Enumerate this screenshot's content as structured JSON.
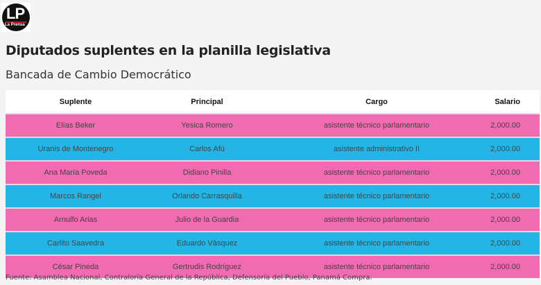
{
  "logo": {
    "text": "LP",
    "name": "La Prensa"
  },
  "title": "Diputados suplentes en la planilla legislativa",
  "subtitle": "Bancada de Cambio Democrático",
  "table": {
    "headers": [
      "Suplente",
      "Principal",
      "Cargo",
      "Salario"
    ],
    "rows": [
      [
        "Elías Beker",
        "Yesica Romero",
        "asistente técnico parlamentario",
        "2,000.00"
      ],
      [
        "Uranis de Montenegro",
        "Carlos Afú",
        "asistente administrativo II",
        "2,000.00"
      ],
      [
        "Ana María Poveda",
        "Didiano Pinilla",
        "asistente técnico parlamentario",
        "2,000.00"
      ],
      [
        "Marcos Rangel",
        "Orlando Carrasquilla",
        "asistente técnico parlamentario",
        "2,000.00"
      ],
      [
        "Arnulfo Arias",
        "Julio de la Guardia",
        "asistente técnico parlamentario",
        "2,000.00"
      ],
      [
        "Carlito Saavedra",
        "Eduardo Vásquez",
        "asistente técnico parlamentario",
        "2,000.00"
      ],
      [
        "César Pineda",
        "Gertrudis Rodríguez",
        "asistente técnico parlamentario",
        "2,000.00"
      ]
    ],
    "row_colors": [
      "#f06bb1",
      "#22b5e6"
    ]
  },
  "source": "Fuente: Asamblea Nacional, Contraloría General de la República, Defensoría del Pueblo, Panamá Compra."
}
